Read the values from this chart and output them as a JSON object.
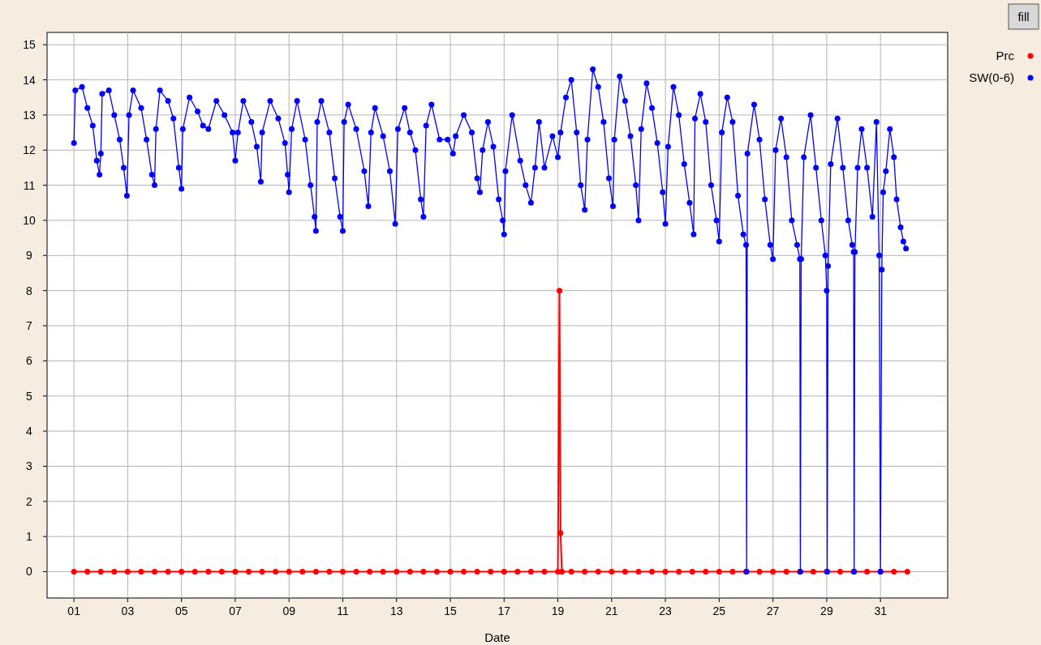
{
  "chart_data": {
    "type": "line",
    "xlabel": "Date",
    "annotations": [
      "fill"
    ],
    "xlim": [
      0,
      33.5
    ],
    "ylim": [
      -0.75,
      15.35
    ],
    "xticks": [
      {
        "value": 1,
        "label": "01"
      },
      {
        "value": 3,
        "label": "03"
      },
      {
        "value": 5,
        "label": "05"
      },
      {
        "value": 7,
        "label": "07"
      },
      {
        "value": 9,
        "label": "09"
      },
      11,
      13,
      15,
      17,
      19,
      21,
      23,
      25,
      27,
      29,
      31
    ],
    "yticks": [
      0,
      1,
      2,
      3,
      4,
      5,
      6,
      7,
      8,
      9,
      10,
      11,
      12,
      13,
      14,
      15
    ],
    "grid": true,
    "legend": "top right",
    "marker": "circle",
    "line_style": "solid",
    "series": [
      {
        "name": "Prc",
        "color": "#ff0000",
        "x": [
          1,
          1.5,
          2,
          2.5,
          3,
          3.5,
          4,
          4.5,
          5,
          5.5,
          6,
          6.5,
          7,
          7.5,
          8,
          8.5,
          9,
          9.5,
          10,
          10.5,
          11,
          11.5,
          12,
          12.5,
          13,
          13.5,
          14,
          14.5,
          15,
          15.5,
          16,
          16.5,
          17,
          17.5,
          18,
          18.5,
          19,
          19.06,
          19.1,
          19.15,
          19.5,
          20,
          20.5,
          21,
          21.5,
          22,
          22.5,
          23,
          23.5,
          24,
          24.5,
          25,
          25.5,
          26,
          26.5,
          27,
          27.5,
          28,
          28.5,
          29,
          29.5,
          30,
          30.5,
          31,
          31.5,
          32
        ],
        "values": [
          0,
          0,
          0,
          0,
          0,
          0,
          0,
          0,
          0,
          0,
          0,
          0,
          0,
          0,
          0,
          0,
          0,
          0,
          0,
          0,
          0,
          0,
          0,
          0,
          0,
          0,
          0,
          0,
          0,
          0,
          0,
          0,
          0,
          0,
          0,
          0,
          0,
          8,
          1.1,
          0,
          0,
          0,
          0,
          0,
          0,
          0,
          0,
          0,
          0,
          0,
          0,
          0,
          0,
          0,
          0,
          0,
          0,
          0,
          0,
          0,
          0,
          0,
          0,
          0,
          0,
          0
        ]
      },
      {
        "name": "SW(0-6)",
        "color": "#0000ff",
        "x": [
          1,
          1.05,
          1.3,
          1.5,
          1.7,
          1.85,
          1.95,
          2,
          2.05,
          2.3,
          2.5,
          2.7,
          2.85,
          2.97,
          3.05,
          3.2,
          3.5,
          3.7,
          3.9,
          4,
          4.05,
          4.2,
          4.5,
          4.7,
          4.9,
          5,
          5.05,
          5.3,
          5.6,
          5.8,
          6,
          6.3,
          6.6,
          6.9,
          7,
          7.1,
          7.3,
          7.6,
          7.8,
          7.95,
          8,
          8.3,
          8.6,
          8.85,
          8.95,
          9,
          9.1,
          9.3,
          9.6,
          9.8,
          9.95,
          10,
          10.05,
          10.2,
          10.5,
          10.7,
          10.9,
          11,
          11.05,
          11.2,
          11.5,
          11.8,
          11.95,
          12.05,
          12.2,
          12.5,
          12.75,
          12.95,
          13.05,
          13.3,
          13.5,
          13.7,
          13.9,
          14,
          14.1,
          14.3,
          14.6,
          14.9,
          15.1,
          15.2,
          15.5,
          15.8,
          16,
          16.1,
          16.2,
          16.4,
          16.6,
          16.8,
          16.95,
          17,
          17.05,
          17.3,
          17.6,
          17.8,
          18,
          18.15,
          18.3,
          18.5,
          18.8,
          19,
          19.1,
          19.3,
          19.5,
          19.7,
          19.85,
          20,
          20.1,
          20.3,
          20.5,
          20.7,
          20.9,
          21.05,
          21.1,
          21.3,
          21.5,
          21.7,
          21.9,
          22,
          22.1,
          22.3,
          22.5,
          22.7,
          22.9,
          23,
          23.1,
          23.3,
          23.5,
          23.7,
          23.9,
          24.05,
          24.1,
          24.3,
          24.5,
          24.7,
          24.9,
          25,
          25.1,
          25.3,
          25.5,
          25.7,
          25.9,
          26,
          26.02,
          26.05,
          26.3,
          26.5,
          26.7,
          26.9,
          27,
          27.1,
          27.3,
          27.5,
          27.7,
          27.9,
          28,
          28.02,
          28.05,
          28.15,
          28.4,
          28.6,
          28.8,
          28.95,
          29,
          29.02,
          29.05,
          29.15,
          29.4,
          29.6,
          29.8,
          29.95,
          30,
          30.02,
          30.05,
          30.15,
          30.3,
          30.5,
          30.7,
          30.85,
          30.95,
          31,
          31.05,
          31.1,
          31.2,
          31.35,
          31.5,
          31.6,
          31.75,
          31.85,
          31.95
        ],
        "values": [
          12.2,
          13.7,
          13.8,
          13.2,
          12.7,
          11.7,
          11.3,
          11.9,
          13.6,
          13.7,
          13,
          12.3,
          11.5,
          10.7,
          13,
          13.7,
          13.2,
          12.3,
          11.3,
          11,
          12.6,
          13.7,
          13.4,
          12.9,
          11.5,
          10.9,
          12.6,
          13.5,
          13.1,
          12.7,
          12.6,
          13.4,
          13,
          12.5,
          11.7,
          12.5,
          13.4,
          12.8,
          12.1,
          11.1,
          12.5,
          13.4,
          12.9,
          12.2,
          11.3,
          10.8,
          12.6,
          13.4,
          12.3,
          11,
          10.1,
          9.7,
          12.8,
          13.4,
          12.5,
          11.2,
          10.1,
          9.7,
          12.8,
          13.3,
          12.6,
          11.4,
          10.4,
          12.5,
          13.2,
          12.4,
          11.4,
          9.9,
          12.6,
          13.2,
          12.5,
          12,
          10.6,
          10.1,
          12.7,
          13.3,
          12.3,
          12.3,
          11.9,
          12.4,
          13,
          12.5,
          11.2,
          10.8,
          12,
          12.8,
          12.1,
          10.6,
          10,
          9.6,
          11.4,
          13,
          11.7,
          11,
          10.5,
          11.5,
          12.8,
          11.5,
          12.4,
          11.8,
          12.5,
          13.5,
          14,
          12.5,
          11,
          10.3,
          12.3,
          14.3,
          13.8,
          12.8,
          11.2,
          10.4,
          12.3,
          14.1,
          13.4,
          12.4,
          11,
          10,
          12.6,
          13.9,
          13.2,
          12.2,
          10.8,
          9.9,
          12.1,
          13.8,
          13,
          11.6,
          10.5,
          9.6,
          12.9,
          13.6,
          12.8,
          11,
          10,
          9.4,
          12.5,
          13.5,
          12.8,
          10.7,
          9.6,
          9.3,
          0,
          11.9,
          13.3,
          12.3,
          10.6,
          9.3,
          8.9,
          12,
          12.9,
          11.8,
          10,
          9.3,
          8.9,
          0,
          8.9,
          11.8,
          13,
          11.5,
          10,
          9,
          8,
          0,
          8.7,
          11.6,
          12.9,
          11.5,
          10,
          9.3,
          9.1,
          0,
          9.1,
          11.5,
          12.6,
          11.5,
          10.1,
          12.8,
          9,
          0,
          8.6,
          10.8,
          11.4,
          12.6,
          11.8,
          10.6,
          9.8,
          9.4,
          9.2
        ]
      }
    ]
  }
}
